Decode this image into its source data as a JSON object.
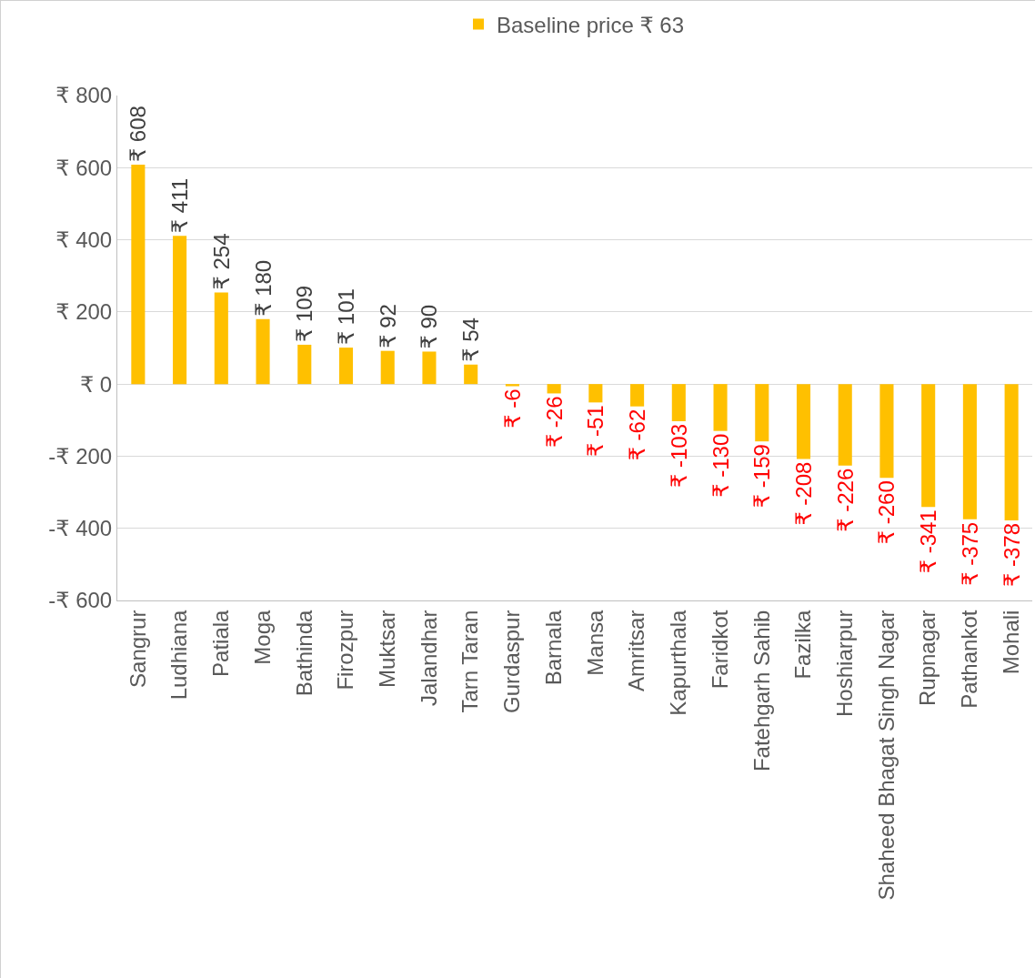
{
  "chart_data": {
    "type": "bar",
    "categories": [
      "Sangrur",
      "Ludhiana",
      "Patiala",
      "Moga",
      "Bathinda",
      "Firozpur",
      "Muktsar",
      "Jalandhar",
      "Tarn Taran",
      "Gurdaspur",
      "Barnala",
      "Mansa",
      "Amritsar",
      "Kapurthala",
      "Faridkot",
      "Fatehgarh Sahib",
      "Fazilka",
      "Hoshiarpur",
      "Shaheed Bhagat Singh Nagar",
      "Rupnagar",
      "Pathankot",
      "Mohali"
    ],
    "series": [
      {
        "name": "Baseline price ₹ 63",
        "color": "#ffc000",
        "values": [
          608,
          411,
          254,
          180,
          109,
          101,
          92,
          90,
          54,
          -6,
          -26,
          -51,
          -62,
          -103,
          -130,
          -159,
          -208,
          -226,
          -260,
          -341,
          -375,
          -378
        ],
        "value_labels": [
          "₹ 608",
          "₹ 411",
          "₹ 254",
          "₹ 180",
          "₹ 109",
          "₹ 101",
          "₹ 92",
          "₹ 90",
          "₹ 54",
          "₹ -6",
          "₹ -26",
          "₹ -51",
          "₹ -62",
          "₹ -103",
          "₹ -130",
          "₹ -159",
          "₹ -208",
          "₹ -226",
          "₹ -260",
          "₹ -341",
          "₹ -375",
          "₹ -378"
        ]
      }
    ],
    "ylim": [
      -600,
      800
    ],
    "yticks": [
      {
        "value": -600,
        "label": "-₹ 600"
      },
      {
        "value": -400,
        "label": "-₹ 400"
      },
      {
        "value": -200,
        "label": "-₹ 200"
      },
      {
        "value": 0,
        "label": "₹ 0"
      },
      {
        "value": 200,
        "label": "₹ 200"
      },
      {
        "value": 400,
        "label": "₹ 400"
      },
      {
        "value": 600,
        "label": "₹ 600"
      },
      {
        "value": 800,
        "label": "₹ 800"
      }
    ],
    "grid": "y",
    "legend": "top"
  }
}
